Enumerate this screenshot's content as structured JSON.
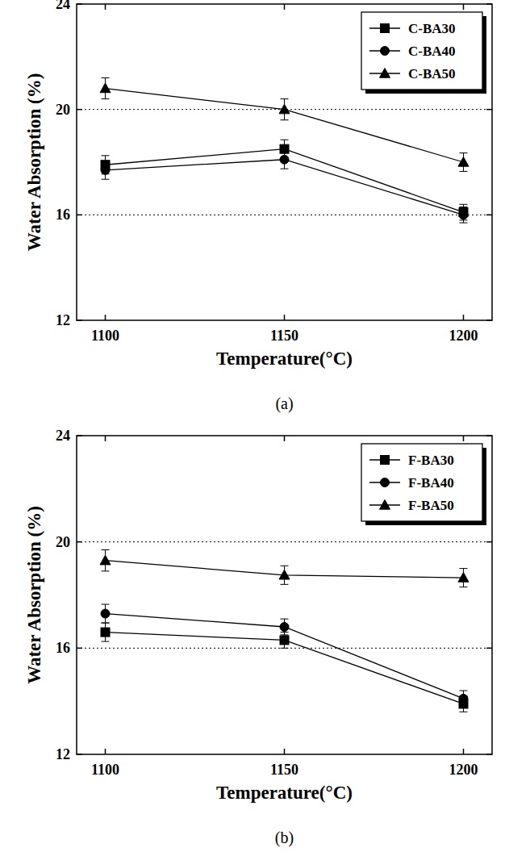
{
  "chart_data": [
    {
      "type": "line",
      "caption": "(a)",
      "x_label": "Temperature(°C)",
      "y_label": "Water Absorption (%)",
      "x": [
        1100,
        1150,
        1200
      ],
      "xlim": [
        1092,
        1208
      ],
      "xticks": [
        1100,
        1150,
        1200
      ],
      "ylim": [
        12,
        24
      ],
      "yticks": [
        12,
        16,
        20,
        24
      ],
      "grid": true,
      "legend": "upper right",
      "series": [
        {
          "name": "C-BA30",
          "color": "#000000",
          "marker": "square",
          "values": [
            17.9,
            18.5,
            16.1
          ],
          "errors": [
            0.35,
            0.35,
            0.3
          ]
        },
        {
          "name": "C-BA40",
          "color": "#000000",
          "marker": "circle",
          "values": [
            17.7,
            18.1,
            16.0
          ],
          "errors": [
            0.35,
            0.35,
            0.3
          ]
        },
        {
          "name": "C-BA50",
          "color": "#000000",
          "marker": "triangle",
          "values": [
            20.8,
            20.0,
            18.0
          ],
          "errors": [
            0.4,
            0.4,
            0.35
          ]
        }
      ]
    },
    {
      "type": "line",
      "caption": "(b)",
      "x_label": "Temperature(°C)",
      "y_label": "Water Absorption (%)",
      "x": [
        1100,
        1150,
        1200
      ],
      "xlim": [
        1092,
        1208
      ],
      "xticks": [
        1100,
        1150,
        1200
      ],
      "ylim": [
        12,
        24
      ],
      "yticks": [
        12,
        16,
        20,
        24
      ],
      "grid": true,
      "legend": "upper right",
      "series": [
        {
          "name": "F-BA30",
          "color": "#000000",
          "marker": "square",
          "values": [
            16.6,
            16.3,
            13.9
          ],
          "errors": [
            0.35,
            0.3,
            0.3
          ]
        },
        {
          "name": "F-BA40",
          "color": "#000000",
          "marker": "circle",
          "values": [
            17.3,
            16.8,
            14.1
          ],
          "errors": [
            0.35,
            0.3,
            0.3
          ]
        },
        {
          "name": "F-BA50",
          "color": "#000000",
          "marker": "triangle",
          "values": [
            19.3,
            18.75,
            18.65
          ],
          "errors": [
            0.4,
            0.35,
            0.35
          ]
        }
      ]
    }
  ]
}
